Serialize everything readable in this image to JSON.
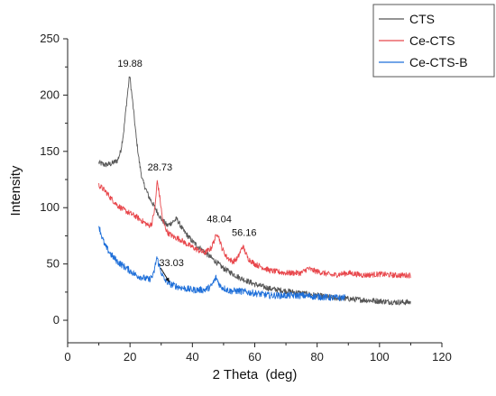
{
  "chart_data": {
    "type": "line",
    "xlabel": "2 Theta",
    "xlabel_unit": "(deg)",
    "ylabel": "Intensity",
    "xlim": [
      0,
      120
    ],
    "ylim": [
      -20,
      250
    ],
    "x_ticks": [
      0,
      20,
      40,
      60,
      80,
      100,
      120
    ],
    "y_ticks": [
      0,
      50,
      100,
      150,
      200,
      250
    ],
    "grid": false,
    "legend_position": "top-right",
    "series": [
      {
        "name": "CTS",
        "color": "#555555",
        "noise": 2.5,
        "points": [
          [
            10,
            140
          ],
          [
            12,
            138
          ],
          [
            14,
            139
          ],
          [
            16,
            142
          ],
          [
            17,
            150
          ],
          [
            18,
            168
          ],
          [
            19,
            196
          ],
          [
            19.88,
            218
          ],
          [
            21,
            190
          ],
          [
            22,
            162
          ],
          [
            23,
            140
          ],
          [
            24,
            124
          ],
          [
            26,
            110
          ],
          [
            28,
            100
          ],
          [
            30,
            90
          ],
          [
            32,
            84
          ],
          [
            34,
            88
          ],
          [
            35,
            90
          ],
          [
            37,
            80
          ],
          [
            40,
            70
          ],
          [
            45,
            58
          ],
          [
            50,
            46
          ],
          [
            55,
            38
          ],
          [
            60,
            32
          ],
          [
            65,
            28
          ],
          [
            70,
            26
          ],
          [
            75,
            24
          ],
          [
            80,
            22
          ],
          [
            85,
            20
          ],
          [
            90,
            19
          ],
          [
            95,
            18
          ],
          [
            100,
            17
          ],
          [
            105,
            16
          ],
          [
            110,
            16
          ]
        ]
      },
      {
        "name": "Ce-CTS",
        "color": "#e8474c",
        "noise": 2.5,
        "points": [
          [
            10,
            120
          ],
          [
            12,
            115
          ],
          [
            14,
            108
          ],
          [
            16,
            102
          ],
          [
            18,
            98
          ],
          [
            20,
            95
          ],
          [
            22,
            92
          ],
          [
            24,
            88
          ],
          [
            26,
            84
          ],
          [
            27,
            86
          ],
          [
            28,
            100
          ],
          [
            28.73,
            124
          ],
          [
            29.6,
            108
          ],
          [
            30.5,
            88
          ],
          [
            32,
            78
          ],
          [
            34,
            74
          ],
          [
            36,
            72
          ],
          [
            38,
            68
          ],
          [
            40,
            65
          ],
          [
            42,
            62
          ],
          [
            44,
            60
          ],
          [
            46,
            64
          ],
          [
            48.04,
            78
          ],
          [
            49.5,
            64
          ],
          [
            51,
            56
          ],
          [
            53,
            52
          ],
          [
            54.5,
            55
          ],
          [
            56.16,
            66
          ],
          [
            57.8,
            55
          ],
          [
            60,
            50
          ],
          [
            65,
            44
          ],
          [
            70,
            42
          ],
          [
            75,
            42
          ],
          [
            77,
            46
          ],
          [
            79,
            44
          ],
          [
            85,
            40
          ],
          [
            90,
            42
          ],
          [
            95,
            40
          ],
          [
            100,
            41
          ],
          [
            105,
            40
          ],
          [
            110,
            40
          ]
        ]
      },
      {
        "name": "Ce-CTS-B",
        "color": "#1e6fd9",
        "noise": 3,
        "points": [
          [
            10,
            84
          ],
          [
            11,
            74
          ],
          [
            12,
            66
          ],
          [
            14,
            58
          ],
          [
            16,
            52
          ],
          [
            18,
            48
          ],
          [
            20,
            44
          ],
          [
            22,
            40
          ],
          [
            24,
            38
          ],
          [
            26,
            36
          ],
          [
            27.5,
            40
          ],
          [
            28.6,
            56
          ],
          [
            29.8,
            44
          ],
          [
            31,
            36
          ],
          [
            33.03,
            32
          ],
          [
            35,
            30
          ],
          [
            38,
            28
          ],
          [
            40,
            27
          ],
          [
            44,
            27
          ],
          [
            46,
            30
          ],
          [
            47.6,
            38
          ],
          [
            49,
            30
          ],
          [
            52,
            26
          ],
          [
            55,
            26
          ],
          [
            60,
            24
          ],
          [
            65,
            22
          ],
          [
            70,
            22
          ],
          [
            75,
            22
          ],
          [
            80,
            21
          ],
          [
            85,
            20
          ],
          [
            89,
            20
          ]
        ]
      }
    ],
    "annotations": [
      {
        "text": "19.88",
        "x": 20,
        "y": 225
      },
      {
        "text": "28.73",
        "x": 29.6,
        "y": 133
      },
      {
        "text": "48.04",
        "x": 48.6,
        "y": 87
      },
      {
        "text": "56.16",
        "x": 56.6,
        "y": 75
      },
      {
        "text": "33.03",
        "x": 33.3,
        "y": 48,
        "arrow_to": [
          32.6,
          34
        ]
      }
    ]
  }
}
